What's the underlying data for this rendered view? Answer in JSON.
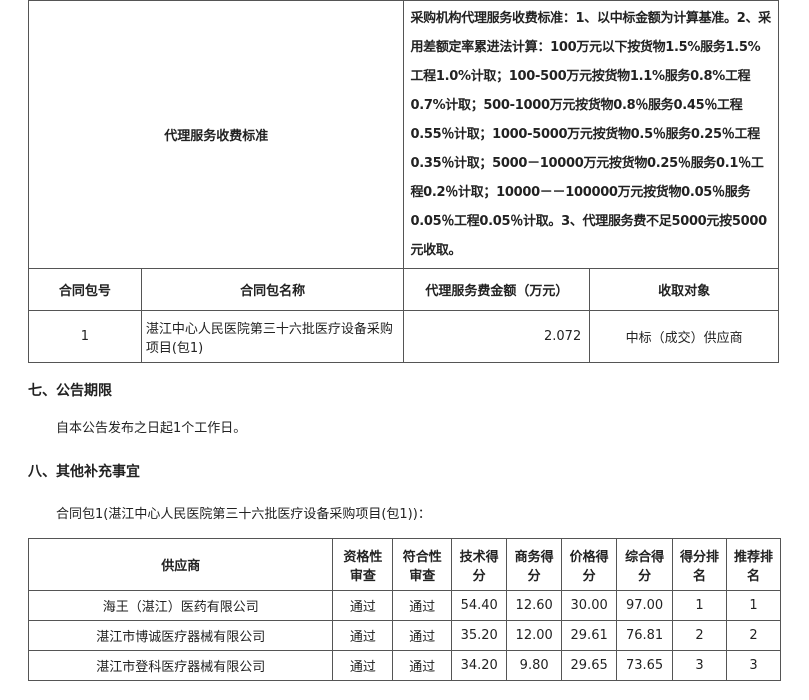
{
  "fee_table": {
    "label": "代理服务收费标准",
    "content": "采购机构代理服务收费标准：1、以中标金额为计算基准。2、采用差额定率累进法计算：100万元以下按货物1.5%服务1.5%工程1.0%计取；100-500万元按货物1.1%服务0.8%工程0.7%计取；500-1000万元按货物0.8％服务0.45％工程0.55％计取；1000-5000万元按货物0.5％服务0.25％工程0.35％计取；5000－10000万元按货物0.25％服务0.1％工程0.2％计取；10000－－100000万元按货物0.05％服务0.05％工程0.05％计取。3、代理服务费不足5000元按5000元收取。",
    "headers": [
      "合同包号",
      "合同包名称",
      "代理服务费金额（万元）",
      "收取对象"
    ],
    "rows": [
      [
        "1",
        "湛江中心人民医院第三十六批医疗设备采购项目(包1)",
        "2.072",
        "中标（成交）供应商"
      ]
    ]
  },
  "section7": {
    "title": "七、公告期限",
    "text": "自本公告发布之日起1个工作日。"
  },
  "section8": {
    "title": "八、其他补充事宜",
    "text": "合同包1(湛江中心人民医院第三十六批医疗设备采购项目(包1))：",
    "headers": [
      "供应商",
      "资格性审查",
      "符合性审查",
      "技术得分",
      "商务得分",
      "价格得分",
      "综合得分",
      "得分排名",
      "推荐排名"
    ],
    "rows": [
      [
        "海王（湛江）医药有限公司",
        "通过",
        "通过",
        "54.40",
        "12.60",
        "30.00",
        "97.00",
        "1",
        "1"
      ],
      [
        "湛江市博诚医疗器械有限公司",
        "通过",
        "通过",
        "35.20",
        "12.00",
        "29.61",
        "76.81",
        "2",
        "2"
      ],
      [
        "湛江市登科医疗器械有限公司",
        "通过",
        "通过",
        "34.20",
        "9.80",
        "29.65",
        "73.65",
        "3",
        "3"
      ]
    ]
  }
}
